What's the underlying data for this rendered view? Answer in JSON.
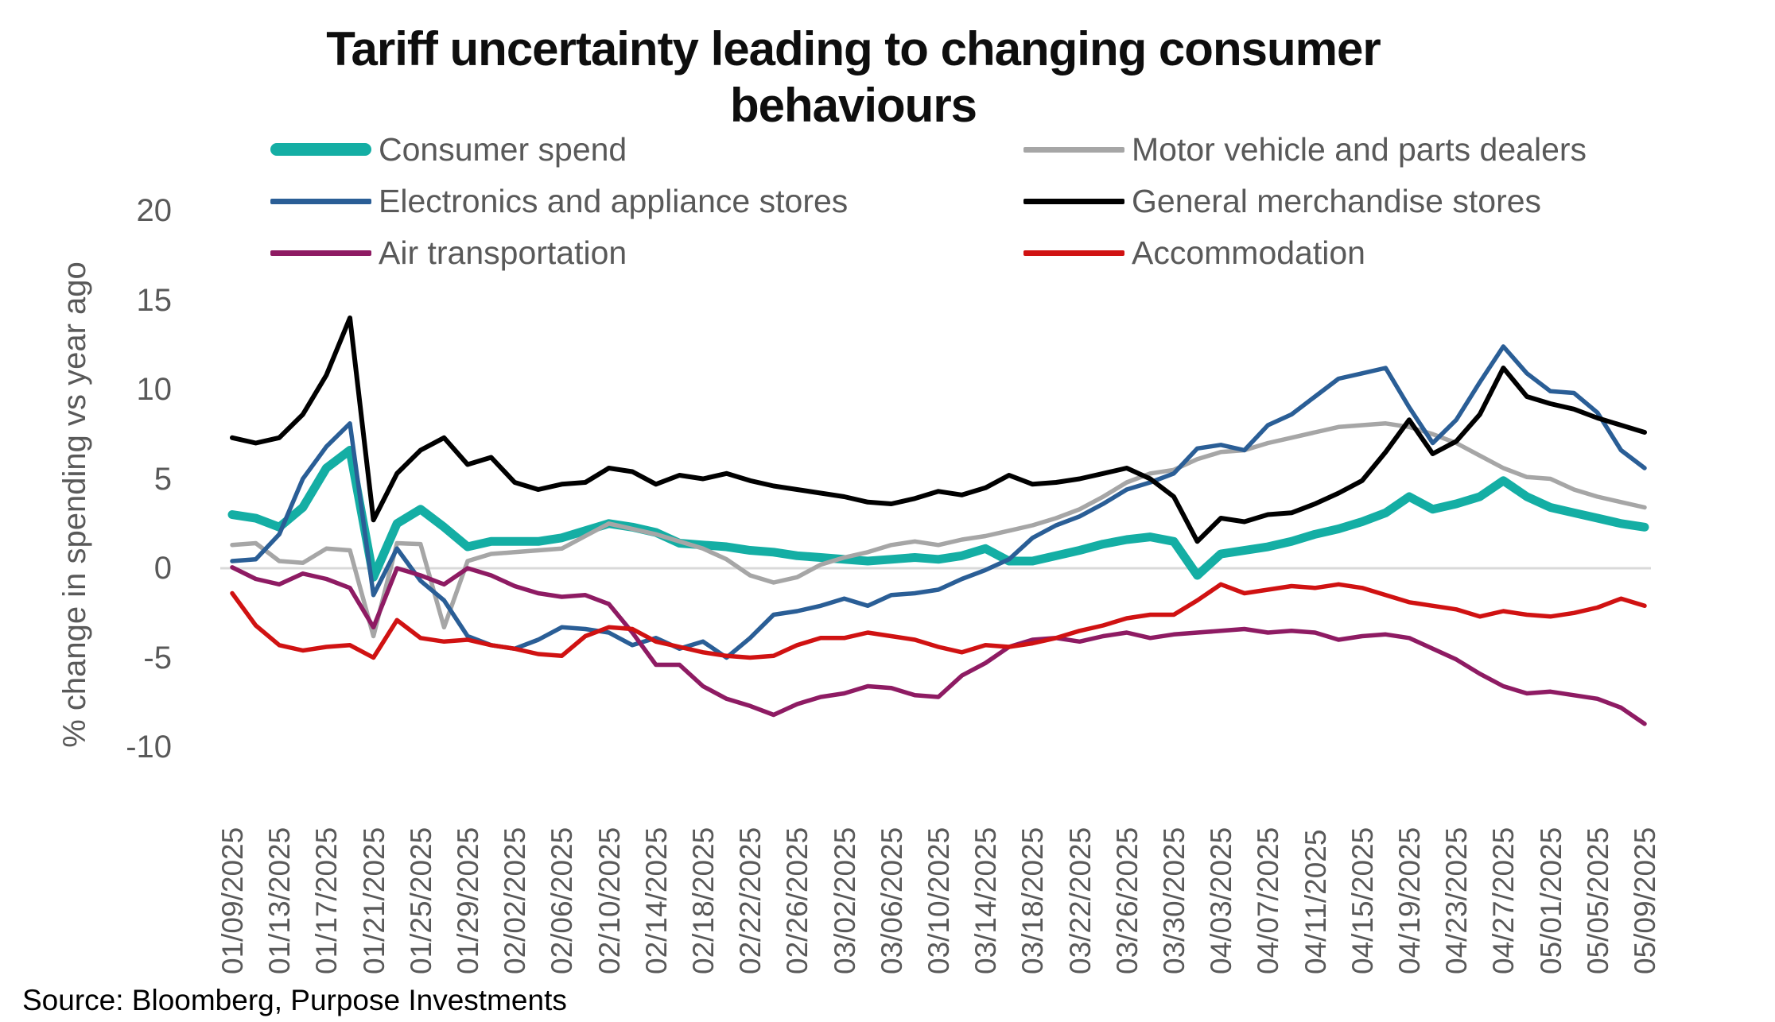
{
  "title": {
    "text": "Tariff uncertainty leading to changing consumer behaviours",
    "lines": [
      "Tariff uncertainty leading to changing consumer",
      "behaviours"
    ]
  },
  "source": "Source: Bloomberg, Purpose Investments",
  "legend": {
    "position": "top",
    "column_series_indices": [
      [
        0,
        2,
        4
      ],
      [
        1,
        3,
        5
      ]
    ]
  },
  "colors": {
    "consumer_spend": "#14AEA4",
    "motor_vehicle": "#A6A6A6",
    "electronics": "#2A5E96",
    "general_merchandise": "#000000",
    "air_transportation": "#8E1B63",
    "accommodation": "#D01212",
    "axis_text": "#595959",
    "zero_gridline": "#D9D9D9"
  },
  "chart_data": {
    "type": "line",
    "title": "Tariff uncertainty leading to changing consumer behaviours",
    "xlabel": "",
    "ylabel": "% change in spending vs year ago",
    "ylim": [
      -10,
      20
    ],
    "y_ticks": [
      20,
      15,
      10,
      5,
      0,
      -5,
      -10
    ],
    "grid": "zero-line-only",
    "legend_position": "top",
    "x_range": [
      "01/09/2025",
      "05/09/2025"
    ],
    "sample_interval_days": 2,
    "x_tick_labels": [
      "01/09/2025",
      "01/13/2025",
      "01/17/2025",
      "01/21/2025",
      "01/25/2025",
      "01/29/2025",
      "02/02/2025",
      "02/06/2025",
      "02/10/2025",
      "02/14/2025",
      "02/18/2025",
      "02/22/2025",
      "02/26/2025",
      "03/02/2025",
      "03/06/2025",
      "03/10/2025",
      "03/14/2025",
      "03/18/2025",
      "03/22/2025",
      "03/26/2025",
      "03/30/2025",
      "04/03/2025",
      "04/07/2025",
      "04/11/2025",
      "04/15/2025",
      "04/19/2025",
      "04/23/2025",
      "04/27/2025",
      "05/01/2025",
      "05/05/2025",
      "05/09/2025"
    ],
    "series": [
      {
        "name": "Consumer spend",
        "color": "#14AEA4",
        "width": 11,
        "values": [
          3.0,
          2.8,
          2.3,
          3.4,
          5.6,
          6.6,
          -0.5,
          2.5,
          3.3,
          2.3,
          1.2,
          1.5,
          1.5,
          1.5,
          1.7,
          2.1,
          2.5,
          2.3,
          2.0,
          1.4,
          1.3,
          1.2,
          1.0,
          0.9,
          0.7,
          0.6,
          0.5,
          0.4,
          0.5,
          0.6,
          0.5,
          0.7,
          1.1,
          0.4,
          0.4,
          0.7,
          1.0,
          1.35,
          1.6,
          1.75,
          1.5,
          -0.4,
          0.8,
          1.0,
          1.2,
          1.5,
          1.9,
          2.2,
          2.6,
          3.1,
          4.0,
          3.3,
          3.6,
          4.0,
          4.9,
          4.0,
          3.4,
          3.1,
          2.8,
          2.5,
          2.3
        ]
      },
      {
        "name": "Motor vehicle and parts dealers",
        "color": "#A6A6A6",
        "width": 5.5,
        "values": [
          1.3,
          1.4,
          0.4,
          0.3,
          1.1,
          1.0,
          -3.8,
          1.4,
          1.35,
          -3.3,
          0.4,
          0.8,
          0.9,
          1.0,
          1.1,
          1.8,
          2.5,
          2.2,
          1.9,
          1.5,
          1.1,
          0.5,
          -0.4,
          -0.8,
          -0.5,
          0.2,
          0.6,
          0.9,
          1.3,
          1.5,
          1.3,
          1.6,
          1.8,
          2.1,
          2.4,
          2.8,
          3.3,
          4.0,
          4.8,
          5.3,
          5.5,
          6.1,
          6.5,
          6.6,
          7.0,
          7.3,
          7.6,
          7.9,
          8.0,
          8.1,
          7.9,
          7.5,
          7.0,
          6.3,
          5.6,
          5.1,
          5.0,
          4.4,
          4.0,
          3.7,
          3.4
        ]
      },
      {
        "name": "Electronics and appliance stores",
        "color": "#2A5E96",
        "width": 5.5,
        "values": [
          0.4,
          0.5,
          1.9,
          5.0,
          6.8,
          8.1,
          -1.5,
          1.1,
          -0.7,
          -1.8,
          -3.8,
          -4.3,
          -4.5,
          -4.0,
          -3.3,
          -3.4,
          -3.6,
          -4.3,
          -3.9,
          -4.5,
          -4.1,
          -5.0,
          -3.9,
          -2.6,
          -2.4,
          -2.1,
          -1.7,
          -2.1,
          -1.5,
          -1.4,
          -1.2,
          -0.6,
          -0.1,
          0.5,
          1.7,
          2.4,
          2.9,
          3.6,
          4.4,
          4.8,
          5.3,
          6.7,
          6.9,
          6.6,
          8.0,
          8.6,
          9.6,
          10.6,
          10.9,
          11.2,
          9.0,
          7.0,
          8.3,
          10.4,
          12.4,
          10.9,
          9.9,
          9.8,
          8.7,
          6.6,
          5.6
        ]
      },
      {
        "name": "General merchandise stores",
        "color": "#000000",
        "width": 6,
        "values": [
          7.3,
          7.0,
          7.3,
          8.6,
          10.8,
          14.0,
          2.7,
          5.3,
          6.6,
          7.3,
          5.8,
          6.2,
          4.8,
          4.4,
          4.7,
          4.8,
          5.6,
          5.4,
          4.7,
          5.2,
          5.0,
          5.3,
          4.9,
          4.6,
          4.4,
          4.2,
          4.0,
          3.7,
          3.6,
          3.9,
          4.3,
          4.1,
          4.5,
          5.2,
          4.7,
          4.8,
          5.0,
          5.3,
          5.6,
          5.0,
          4.0,
          1.5,
          2.8,
          2.6,
          3.0,
          3.1,
          3.6,
          4.2,
          4.9,
          6.5,
          8.3,
          6.4,
          7.1,
          8.6,
          11.2,
          9.6,
          9.2,
          8.9,
          8.4,
          8.0,
          7.6
        ]
      },
      {
        "name": "Air transportation",
        "color": "#8E1B63",
        "width": 5.5,
        "values": [
          0.05,
          -0.6,
          -0.9,
          -0.3,
          -0.6,
          -1.1,
          -3.3,
          0.0,
          -0.4,
          -0.9,
          0.0,
          -0.4,
          -1.0,
          -1.4,
          -1.6,
          -1.5,
          -2.0,
          -3.6,
          -5.4,
          -5.4,
          -6.6,
          -7.3,
          -7.7,
          -8.2,
          -7.6,
          -7.2,
          -7.0,
          -6.6,
          -6.7,
          -7.1,
          -7.2,
          -6.0,
          -5.3,
          -4.4,
          -4.0,
          -3.9,
          -4.1,
          -3.8,
          -3.6,
          -3.9,
          -3.7,
          -3.6,
          -3.5,
          -3.4,
          -3.6,
          -3.5,
          -3.6,
          -4.0,
          -3.8,
          -3.7,
          -3.9,
          -4.5,
          -5.1,
          -5.9,
          -6.6,
          -7.0,
          -6.9,
          -7.1,
          -7.3,
          -7.8,
          -8.7
        ]
      },
      {
        "name": "Accommodation",
        "color": "#D01212",
        "width": 5.5,
        "values": [
          -1.4,
          -3.2,
          -4.3,
          -4.6,
          -4.4,
          -4.3,
          -5.0,
          -2.9,
          -3.9,
          -4.1,
          -4.0,
          -4.3,
          -4.5,
          -4.8,
          -4.9,
          -3.8,
          -3.3,
          -3.4,
          -4.1,
          -4.4,
          -4.7,
          -4.9,
          -5.0,
          -4.9,
          -4.3,
          -3.9,
          -3.9,
          -3.6,
          -3.8,
          -4.0,
          -4.4,
          -4.7,
          -4.3,
          -4.4,
          -4.2,
          -3.9,
          -3.5,
          -3.2,
          -2.8,
          -2.6,
          -2.6,
          -1.8,
          -0.9,
          -1.4,
          -1.2,
          -1.0,
          -1.1,
          -0.9,
          -1.1,
          -1.5,
          -1.9,
          -2.1,
          -2.3,
          -2.7,
          -2.4,
          -2.6,
          -2.7,
          -2.5,
          -2.2,
          -1.7,
          -2.1
        ]
      }
    ]
  }
}
